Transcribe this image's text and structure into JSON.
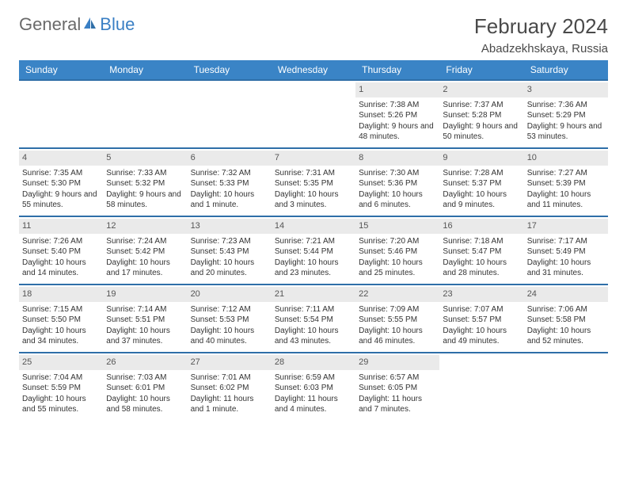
{
  "logo": {
    "gray_text": "General",
    "blue_text": "Blue",
    "gray_color": "#6a6a6a",
    "blue_color": "#3a7fc4"
  },
  "header": {
    "title": "February 2024",
    "subtitle": "Abadzekhskaya, Russia"
  },
  "colors": {
    "header_bg": "#3a84c6",
    "header_text": "#ffffff",
    "week_border": "#2f6fa8",
    "daynum_bg": "#eaeaea",
    "daynum_text": "#555555",
    "body_text": "#333333"
  },
  "day_headers": [
    "Sunday",
    "Monday",
    "Tuesday",
    "Wednesday",
    "Thursday",
    "Friday",
    "Saturday"
  ],
  "weeks": [
    [
      {
        "num": "",
        "sunrise": "",
        "sunset": "",
        "daylight": ""
      },
      {
        "num": "",
        "sunrise": "",
        "sunset": "",
        "daylight": ""
      },
      {
        "num": "",
        "sunrise": "",
        "sunset": "",
        "daylight": ""
      },
      {
        "num": "",
        "sunrise": "",
        "sunset": "",
        "daylight": ""
      },
      {
        "num": "1",
        "sunrise": "Sunrise: 7:38 AM",
        "sunset": "Sunset: 5:26 PM",
        "daylight": "Daylight: 9 hours and 48 minutes."
      },
      {
        "num": "2",
        "sunrise": "Sunrise: 7:37 AM",
        "sunset": "Sunset: 5:28 PM",
        "daylight": "Daylight: 9 hours and 50 minutes."
      },
      {
        "num": "3",
        "sunrise": "Sunrise: 7:36 AM",
        "sunset": "Sunset: 5:29 PM",
        "daylight": "Daylight: 9 hours and 53 minutes."
      }
    ],
    [
      {
        "num": "4",
        "sunrise": "Sunrise: 7:35 AM",
        "sunset": "Sunset: 5:30 PM",
        "daylight": "Daylight: 9 hours and 55 minutes."
      },
      {
        "num": "5",
        "sunrise": "Sunrise: 7:33 AM",
        "sunset": "Sunset: 5:32 PM",
        "daylight": "Daylight: 9 hours and 58 minutes."
      },
      {
        "num": "6",
        "sunrise": "Sunrise: 7:32 AM",
        "sunset": "Sunset: 5:33 PM",
        "daylight": "Daylight: 10 hours and 1 minute."
      },
      {
        "num": "7",
        "sunrise": "Sunrise: 7:31 AM",
        "sunset": "Sunset: 5:35 PM",
        "daylight": "Daylight: 10 hours and 3 minutes."
      },
      {
        "num": "8",
        "sunrise": "Sunrise: 7:30 AM",
        "sunset": "Sunset: 5:36 PM",
        "daylight": "Daylight: 10 hours and 6 minutes."
      },
      {
        "num": "9",
        "sunrise": "Sunrise: 7:28 AM",
        "sunset": "Sunset: 5:37 PM",
        "daylight": "Daylight: 10 hours and 9 minutes."
      },
      {
        "num": "10",
        "sunrise": "Sunrise: 7:27 AM",
        "sunset": "Sunset: 5:39 PM",
        "daylight": "Daylight: 10 hours and 11 minutes."
      }
    ],
    [
      {
        "num": "11",
        "sunrise": "Sunrise: 7:26 AM",
        "sunset": "Sunset: 5:40 PM",
        "daylight": "Daylight: 10 hours and 14 minutes."
      },
      {
        "num": "12",
        "sunrise": "Sunrise: 7:24 AM",
        "sunset": "Sunset: 5:42 PM",
        "daylight": "Daylight: 10 hours and 17 minutes."
      },
      {
        "num": "13",
        "sunrise": "Sunrise: 7:23 AM",
        "sunset": "Sunset: 5:43 PM",
        "daylight": "Daylight: 10 hours and 20 minutes."
      },
      {
        "num": "14",
        "sunrise": "Sunrise: 7:21 AM",
        "sunset": "Sunset: 5:44 PM",
        "daylight": "Daylight: 10 hours and 23 minutes."
      },
      {
        "num": "15",
        "sunrise": "Sunrise: 7:20 AM",
        "sunset": "Sunset: 5:46 PM",
        "daylight": "Daylight: 10 hours and 25 minutes."
      },
      {
        "num": "16",
        "sunrise": "Sunrise: 7:18 AM",
        "sunset": "Sunset: 5:47 PM",
        "daylight": "Daylight: 10 hours and 28 minutes."
      },
      {
        "num": "17",
        "sunrise": "Sunrise: 7:17 AM",
        "sunset": "Sunset: 5:49 PM",
        "daylight": "Daylight: 10 hours and 31 minutes."
      }
    ],
    [
      {
        "num": "18",
        "sunrise": "Sunrise: 7:15 AM",
        "sunset": "Sunset: 5:50 PM",
        "daylight": "Daylight: 10 hours and 34 minutes."
      },
      {
        "num": "19",
        "sunrise": "Sunrise: 7:14 AM",
        "sunset": "Sunset: 5:51 PM",
        "daylight": "Daylight: 10 hours and 37 minutes."
      },
      {
        "num": "20",
        "sunrise": "Sunrise: 7:12 AM",
        "sunset": "Sunset: 5:53 PM",
        "daylight": "Daylight: 10 hours and 40 minutes."
      },
      {
        "num": "21",
        "sunrise": "Sunrise: 7:11 AM",
        "sunset": "Sunset: 5:54 PM",
        "daylight": "Daylight: 10 hours and 43 minutes."
      },
      {
        "num": "22",
        "sunrise": "Sunrise: 7:09 AM",
        "sunset": "Sunset: 5:55 PM",
        "daylight": "Daylight: 10 hours and 46 minutes."
      },
      {
        "num": "23",
        "sunrise": "Sunrise: 7:07 AM",
        "sunset": "Sunset: 5:57 PM",
        "daylight": "Daylight: 10 hours and 49 minutes."
      },
      {
        "num": "24",
        "sunrise": "Sunrise: 7:06 AM",
        "sunset": "Sunset: 5:58 PM",
        "daylight": "Daylight: 10 hours and 52 minutes."
      }
    ],
    [
      {
        "num": "25",
        "sunrise": "Sunrise: 7:04 AM",
        "sunset": "Sunset: 5:59 PM",
        "daylight": "Daylight: 10 hours and 55 minutes."
      },
      {
        "num": "26",
        "sunrise": "Sunrise: 7:03 AM",
        "sunset": "Sunset: 6:01 PM",
        "daylight": "Daylight: 10 hours and 58 minutes."
      },
      {
        "num": "27",
        "sunrise": "Sunrise: 7:01 AM",
        "sunset": "Sunset: 6:02 PM",
        "daylight": "Daylight: 11 hours and 1 minute."
      },
      {
        "num": "28",
        "sunrise": "Sunrise: 6:59 AM",
        "sunset": "Sunset: 6:03 PM",
        "daylight": "Daylight: 11 hours and 4 minutes."
      },
      {
        "num": "29",
        "sunrise": "Sunrise: 6:57 AM",
        "sunset": "Sunset: 6:05 PM",
        "daylight": "Daylight: 11 hours and 7 minutes."
      },
      {
        "num": "",
        "sunrise": "",
        "sunset": "",
        "daylight": ""
      },
      {
        "num": "",
        "sunrise": "",
        "sunset": "",
        "daylight": ""
      }
    ]
  ]
}
